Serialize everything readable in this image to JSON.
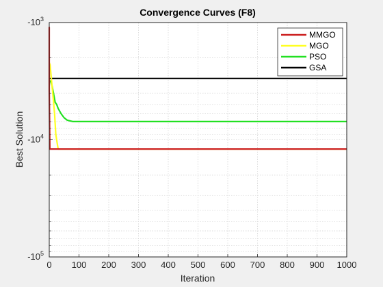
{
  "chart_data": {
    "type": "line",
    "title": "Convergence Curves (F8)",
    "xlabel": "Iteration",
    "ylabel": "Best Solution",
    "xlim": [
      0,
      1000
    ],
    "xticks": [
      0,
      100,
      200,
      300,
      400,
      500,
      600,
      700,
      800,
      900,
      1000
    ],
    "ylim": [
      -1000,
      -100000
    ],
    "yscale": "log (magnitude, negative values)",
    "ytick_values": [
      -1000,
      -10000,
      -100000
    ],
    "ytick_base": [
      "-10",
      "-10",
      "-10"
    ],
    "ytick_exp": [
      "3",
      "4",
      "5"
    ],
    "grid": true,
    "legend_position": "top-right",
    "series": [
      {
        "name": "MMGO",
        "color": "#cc1f1f",
        "x": [
          0,
          0,
          0,
          2,
          8,
          20,
          1000
        ],
        "y": [
          -1400,
          -1100,
          -3800,
          -12000,
          -12000,
          -12000,
          -12000
        ]
      },
      {
        "name": "MGO",
        "color": "#ffff22",
        "x": [
          0,
          3,
          6,
          10,
          14,
          18,
          22,
          30,
          1000
        ],
        "y": [
          -2200,
          -2300,
          -2800,
          -3600,
          -4600,
          -6000,
          -9000,
          -12000,
          -12000
        ]
      },
      {
        "name": "PSO",
        "color": "#22e022",
        "x": [
          0,
          5,
          10,
          15,
          20,
          25,
          30,
          40,
          50,
          60,
          70,
          80,
          90,
          100,
          1000
        ],
        "y": [
          -3100,
          -3200,
          -3500,
          -4100,
          -4800,
          -5000,
          -5400,
          -6000,
          -6500,
          -6800,
          -6900,
          -7000,
          -7000,
          -7000,
          -7000
        ]
      },
      {
        "name": "GSA",
        "color": "#000000",
        "x": [
          0,
          1000
        ],
        "y": [
          -3000,
          -3000
        ]
      }
    ]
  }
}
